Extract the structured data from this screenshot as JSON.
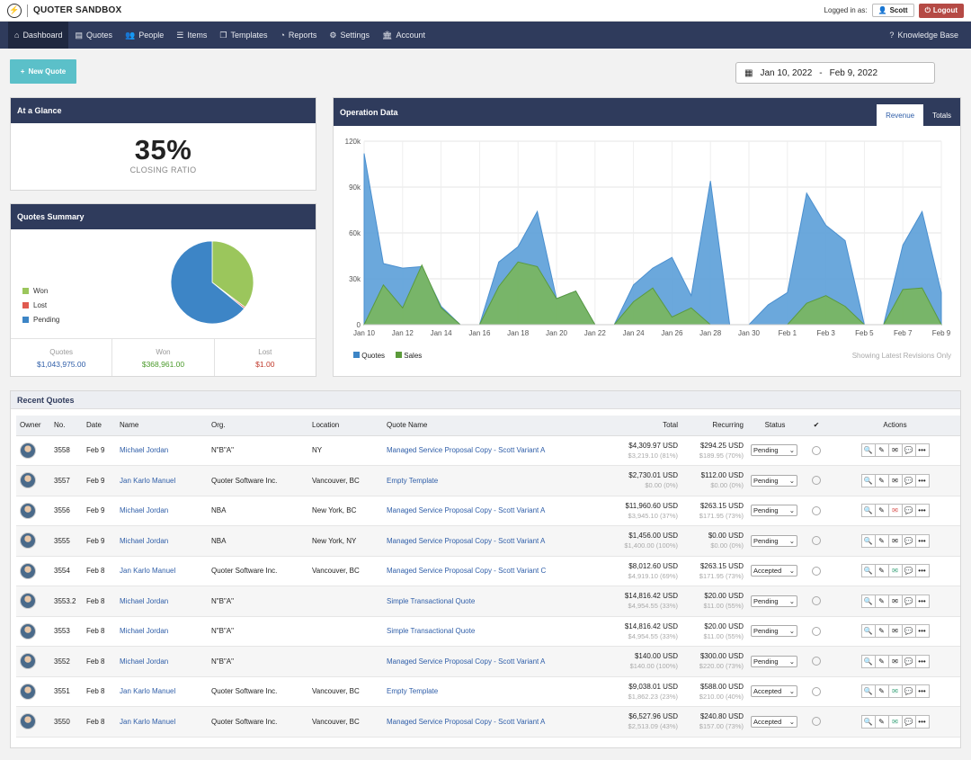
{
  "app": {
    "title": "QUOTER SANDBOX",
    "logged_in_label": "Logged in as:",
    "user": "Scott",
    "logout": "Logout"
  },
  "nav": {
    "items": [
      {
        "label": "Dashboard",
        "icon": "home-icon"
      },
      {
        "label": "Quotes",
        "icon": "document-icon"
      },
      {
        "label": "People",
        "icon": "people-icon"
      },
      {
        "label": "Items",
        "icon": "list-icon"
      },
      {
        "label": "Templates",
        "icon": "templates-icon"
      },
      {
        "label": "Reports",
        "icon": "pie-icon"
      },
      {
        "label": "Settings",
        "icon": "gears-icon"
      },
      {
        "label": "Account",
        "icon": "bank-icon"
      }
    ],
    "help": "Knowledge Base"
  },
  "new_quote": "New Quote",
  "date_range": {
    "start": "Jan 10, 2022",
    "sep": "-",
    "end": "Feb 9, 2022"
  },
  "glance": {
    "title": "At a Glance",
    "value": "35%",
    "label": "CLOSING RATIO"
  },
  "summary": {
    "title": "Quotes Summary",
    "legend": [
      {
        "label": "Won",
        "color": "#9bc65c"
      },
      {
        "label": "Lost",
        "color": "#e05a4f"
      },
      {
        "label": "Pending",
        "color": "#3d85c6"
      }
    ],
    "pie": [
      {
        "label": "Won",
        "value": 35.3,
        "color": "#9bc65c"
      },
      {
        "label": "Lost",
        "value": 0.6,
        "color": "#e05a4f"
      },
      {
        "label": "Pending",
        "value": 64.1,
        "color": "#3d85c6"
      }
    ],
    "cells": [
      {
        "label": "Quotes",
        "value": "$1,043,975.00",
        "color": "#2f5ea8"
      },
      {
        "label": "Won",
        "value": "$368,961.00",
        "color": "#4a9a2a"
      },
      {
        "label": "Lost",
        "value": "$1.00",
        "color": "#c0392b"
      }
    ]
  },
  "operation": {
    "title": "Operation Data",
    "tabs": [
      "Revenue",
      "Totals"
    ],
    "note": "Showing Latest Revisions Only"
  },
  "chart_data": {
    "type": "area",
    "x": [
      "Jan 10",
      "Jan 11",
      "Jan 12",
      "Jan 13",
      "Jan 14",
      "Jan 15",
      "Jan 16",
      "Jan 17",
      "Jan 18",
      "Jan 19",
      "Jan 20",
      "Jan 21",
      "Jan 22",
      "Jan 23",
      "Jan 24",
      "Jan 25",
      "Jan 26",
      "Jan 27",
      "Jan 28",
      "Jan 29",
      "Jan 30",
      "Jan 31",
      "Feb 1",
      "Feb 2",
      "Feb 3",
      "Feb 4",
      "Feb 5",
      "Feb 6",
      "Feb 7",
      "Feb 8",
      "Feb 9"
    ],
    "x_tick_labels": [
      "Jan 10",
      "Jan 12",
      "Jan 14",
      "Jan 16",
      "Jan 18",
      "Jan 20",
      "Jan 22",
      "Jan 24",
      "Jan 26",
      "Jan 28",
      "Jan 30",
      "Feb 1",
      "Feb 3",
      "Feb 5",
      "Feb 7",
      "Feb 9"
    ],
    "series": [
      {
        "name": "Quotes",
        "color": "#5b9fd8",
        "values": [
          112000,
          40000,
          37000,
          38000,
          12000,
          0,
          0,
          41000,
          51000,
          74000,
          17000,
          22000,
          0,
          0,
          26000,
          37000,
          44000,
          19000,
          94000,
          0,
          0,
          13000,
          21000,
          86000,
          65000,
          55000,
          0,
          0,
          52000,
          74000,
          21000
        ]
      },
      {
        "name": "Sales",
        "color": "#79b65e",
        "values": [
          0,
          26000,
          11000,
          39000,
          11000,
          0,
          0,
          25000,
          41000,
          38000,
          17000,
          22000,
          0,
          0,
          15000,
          24000,
          5000,
          11000,
          0,
          0,
          0,
          0,
          0,
          14000,
          19000,
          12000,
          0,
          0,
          23000,
          24000,
          0
        ]
      }
    ],
    "legend": [
      {
        "label": "Quotes",
        "color": "#3d85c6"
      },
      {
        "label": "Sales",
        "color": "#5b9a3a"
      }
    ],
    "y_ticks": [
      "0",
      "30k",
      "60k",
      "90k",
      "120k"
    ],
    "ylim": [
      0,
      120000
    ]
  },
  "recent": {
    "title": "Recent Quotes",
    "headers": {
      "owner": "Owner",
      "no": "No.",
      "date": "Date",
      "name": "Name",
      "org": "Org.",
      "location": "Location",
      "quote_name": "Quote Name",
      "total": "Total",
      "recurring": "Recurring",
      "status": "Status",
      "actions": "Actions"
    },
    "rows": [
      {
        "no": "3558",
        "date": "Feb 9",
        "name": "Michael Jordan",
        "org": "N\"B\"A\"",
        "location": "NY",
        "quote": "Managed Service Proposal Copy - Scott Variant A",
        "total": "$4,309.97 USD",
        "total_sub": "$3,219.10 (81%)",
        "rec": "$294.25 USD",
        "rec_sub": "$189.95 (70%)",
        "status": "Pending",
        "mail_icon": "envelope-icon"
      },
      {
        "no": "3557",
        "date": "Feb 9",
        "name": "Jan Karlo Manuel",
        "org": "Quoter Software Inc.",
        "location": "Vancouver, BC",
        "quote": "Empty Template",
        "total": "$2,730.01 USD",
        "total_sub": "$0.00 (0%)",
        "rec": "$112.00 USD",
        "rec_sub": "$0.00 (0%)",
        "status": "Pending",
        "mail_icon": "envelope-icon"
      },
      {
        "no": "3556",
        "date": "Feb 9",
        "name": "Michael Jordan",
        "org": "NBA",
        "location": "New York, BC",
        "quote": "Managed Service Proposal Copy - Scott Variant A",
        "total": "$11,960.60 USD",
        "total_sub": "$3,945.10 (37%)",
        "rec": "$263.15 USD",
        "rec_sub": "$171.95 (73%)",
        "status": "Pending",
        "mail_icon": "red-envelope-icon"
      },
      {
        "no": "3555",
        "date": "Feb 9",
        "name": "Michael Jordan",
        "org": "NBA",
        "location": "New York, NY",
        "quote": "Managed Service Proposal Copy - Scott Variant A",
        "total": "$1,456.00 USD",
        "total_sub": "$1,400.00 (100%)",
        "rec": "$0.00 USD",
        "rec_sub": "$0.00 (0%)",
        "status": "Pending",
        "mail_icon": "envelope-icon"
      },
      {
        "no": "3554",
        "date": "Feb 8",
        "name": "Jan Karlo Manuel",
        "org": "Quoter Software Inc.",
        "location": "Vancouver, BC",
        "quote": "Managed Service Proposal Copy - Scott Variant C",
        "total": "$8,012.60 USD",
        "total_sub": "$4,919.10 (69%)",
        "rec": "$263.15 USD",
        "rec_sub": "$171.95 (73%)",
        "status": "Accepted",
        "mail_icon": "open-envelope-icon"
      },
      {
        "no": "3553.2",
        "date": "Feb 8",
        "name": "Michael Jordan",
        "org": "N\"B\"A\"",
        "location": "",
        "quote": "Simple Transactional Quote",
        "total": "$14,816.42 USD",
        "total_sub": "$4,954.55 (33%)",
        "rec": "$20.00 USD",
        "rec_sub": "$11.00 (55%)",
        "status": "Pending",
        "mail_icon": "envelope-icon"
      },
      {
        "no": "3553",
        "date": "Feb 8",
        "name": "Michael Jordan",
        "org": "N\"B\"A\"",
        "location": "",
        "quote": "Simple Transactional Quote",
        "total": "$14,816.42 USD",
        "total_sub": "$4,954.55 (33%)",
        "rec": "$20.00 USD",
        "rec_sub": "$11.00 (55%)",
        "status": "Pending",
        "mail_icon": "envelope-icon"
      },
      {
        "no": "3552",
        "date": "Feb 8",
        "name": "Michael Jordan",
        "org": "N\"B\"A\"",
        "location": "",
        "quote": "Managed Service Proposal Copy - Scott Variant A",
        "total": "$140.00 USD",
        "total_sub": "$140.00 (100%)",
        "rec": "$300.00 USD",
        "rec_sub": "$220.00 (73%)",
        "status": "Pending",
        "mail_icon": "envelope-icon"
      },
      {
        "no": "3551",
        "date": "Feb 8",
        "name": "Jan Karlo Manuel",
        "org": "Quoter Software Inc.",
        "location": "Vancouver, BC",
        "quote": "Empty Template",
        "total": "$9,038.01 USD",
        "total_sub": "$1,862.23 (23%)",
        "rec": "$588.00 USD",
        "rec_sub": "$210.00 (40%)",
        "status": "Accepted",
        "mail_icon": "open-envelope-icon"
      },
      {
        "no": "3550",
        "date": "Feb 8",
        "name": "Jan Karlo Manuel",
        "org": "Quoter Software Inc.",
        "location": "Vancouver, BC",
        "quote": "Managed Service Proposal Copy - Scott Variant A",
        "total": "$6,527.96 USD",
        "total_sub": "$2,513.09 (43%)",
        "rec": "$240.80 USD",
        "rec_sub": "$157.00 (73%)",
        "status": "Accepted",
        "mail_icon": "open-envelope-icon"
      }
    ]
  }
}
